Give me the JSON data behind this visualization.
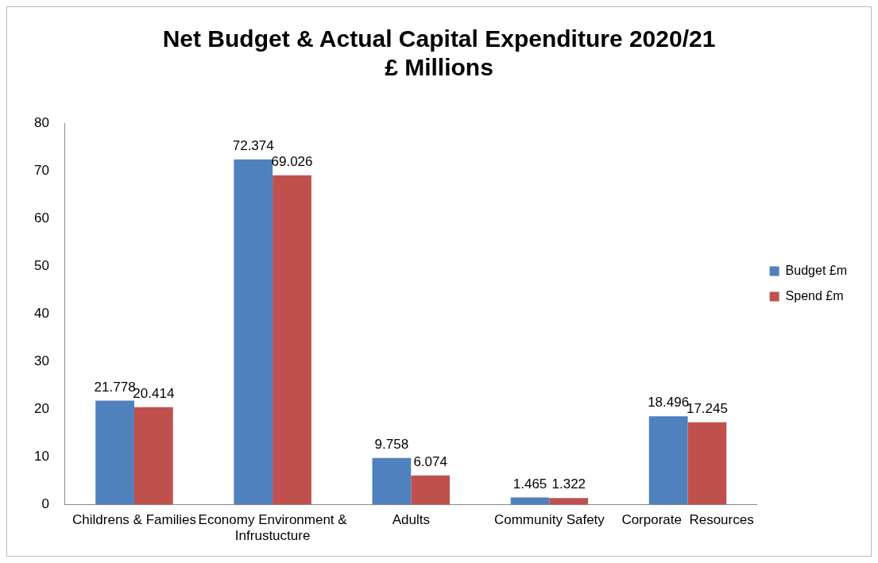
{
  "chart_data": {
    "type": "bar",
    "title": "Net Budget & Actual Capital Expenditure 2020/21",
    "subtitle": "£ Millions",
    "categories": [
      "Childrens & Families",
      "Economy Environment & Infrustucture",
      "Adults",
      "Community Safety",
      "Corporate  Resources"
    ],
    "series": [
      {
        "name": "Budget £m",
        "color": "#4f81bd",
        "values": [
          21.778,
          72.374,
          9.758,
          1.465,
          18.496
        ]
      },
      {
        "name": "Spend £m",
        "color": "#c0504d",
        "values": [
          20.414,
          69.026,
          6.074,
          1.322,
          17.245
        ]
      }
    ],
    "ylim": [
      0,
      80
    ],
    "yticks": [
      0,
      10,
      20,
      30,
      40,
      50,
      60,
      70,
      80
    ],
    "grid": false,
    "legend": "right",
    "data_labels": true
  }
}
